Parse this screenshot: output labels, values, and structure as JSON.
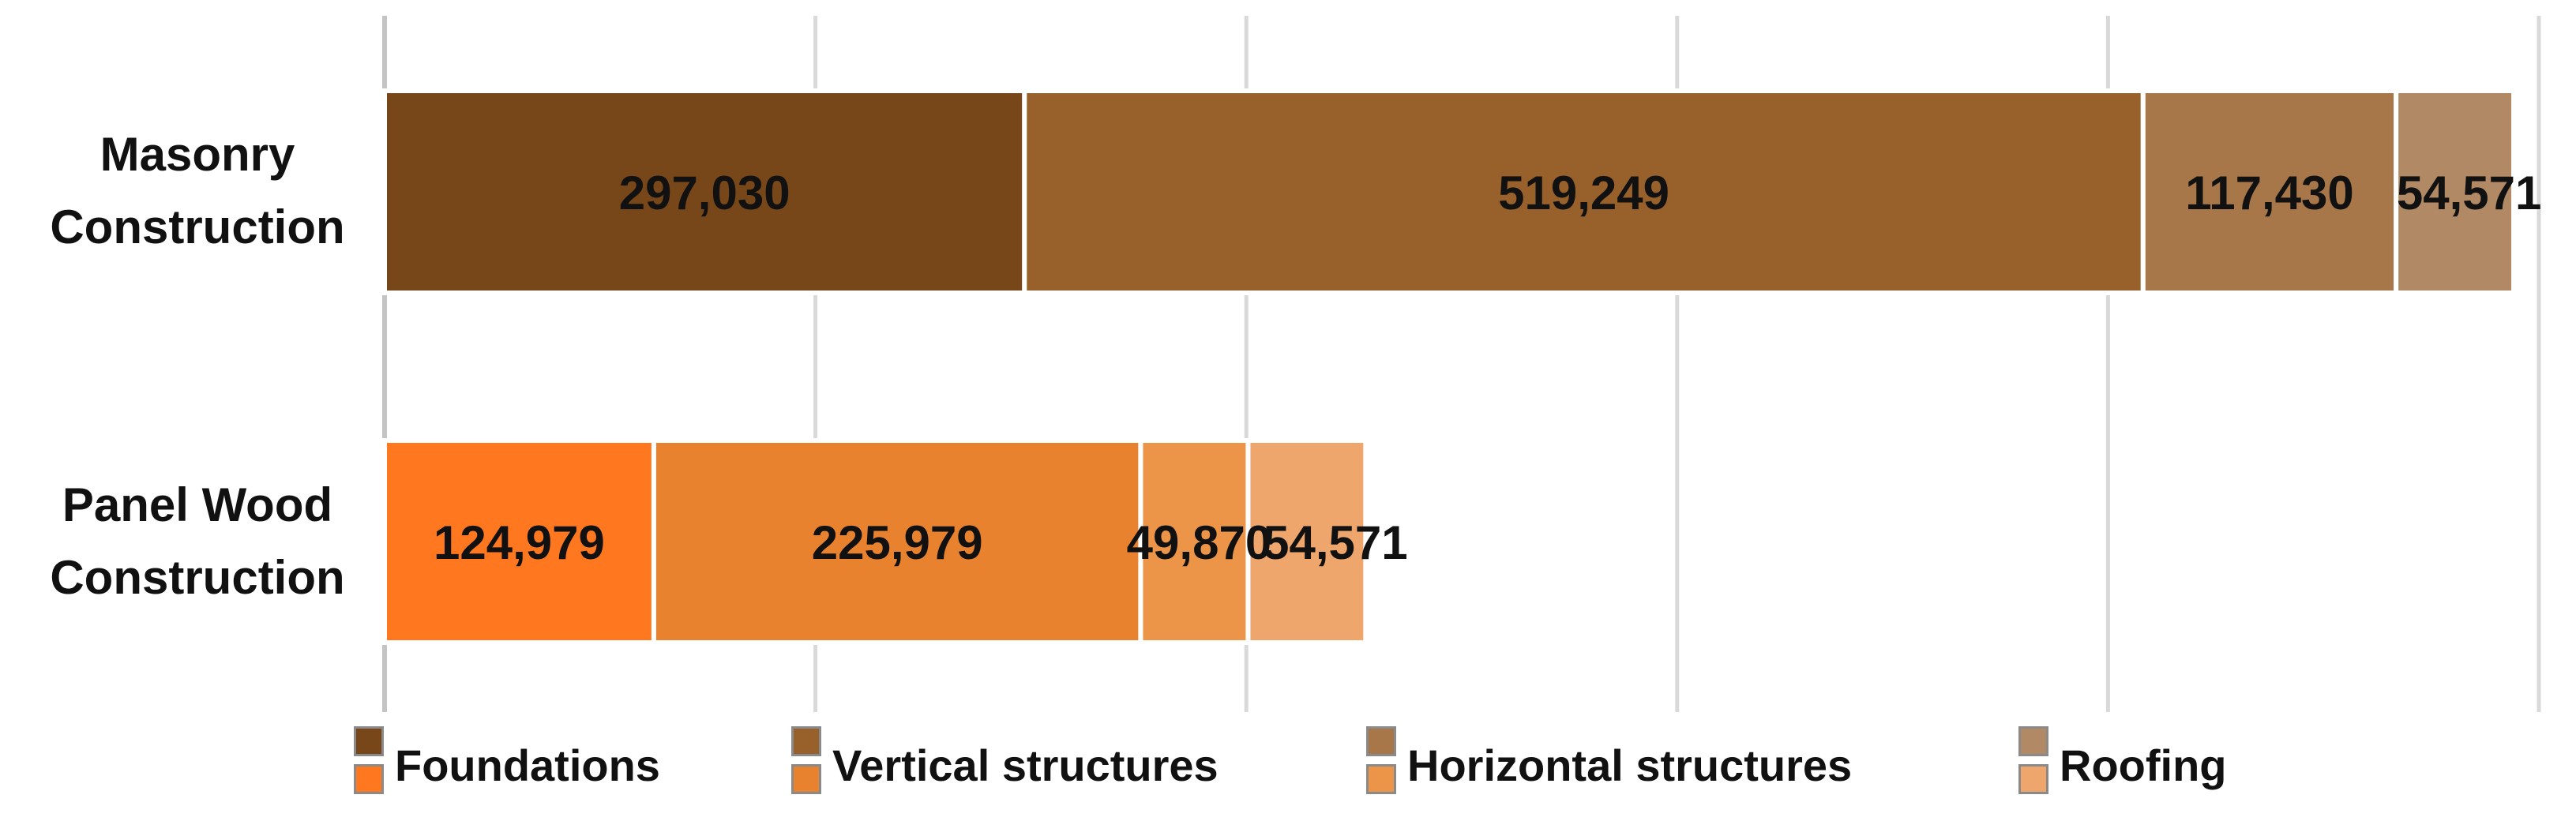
{
  "chart_data": {
    "type": "bar",
    "orientation": "horizontal",
    "stacked": true,
    "categories": [
      "Masonry Construction",
      "Panel Wood Construction"
    ],
    "series": [
      {
        "name": "Foundations",
        "values": [
          297030,
          124979
        ],
        "colors": [
          "#774719",
          "#FF781F"
        ]
      },
      {
        "name": "Vertical structures",
        "values": [
          519249,
          225979
        ],
        "colors": [
          "#98612C",
          "#E8822F"
        ]
      },
      {
        "name": "Horizontal structures",
        "values": [
          117430,
          49870
        ],
        "colors": [
          "#A87749",
          "#EC9447"
        ]
      },
      {
        "name": "Roofing",
        "values": [
          54571,
          54571
        ],
        "colors": [
          "#B18964",
          "#EEA66C"
        ]
      }
    ],
    "data_labels": [
      [
        "297,030",
        "519,249",
        "117,430",
        "54,571"
      ],
      [
        "124,979",
        "225,979",
        "49,870",
        "54,571"
      ]
    ],
    "xlim": [
      0,
      1000000
    ],
    "grid": true,
    "legend_position": "bottom"
  }
}
